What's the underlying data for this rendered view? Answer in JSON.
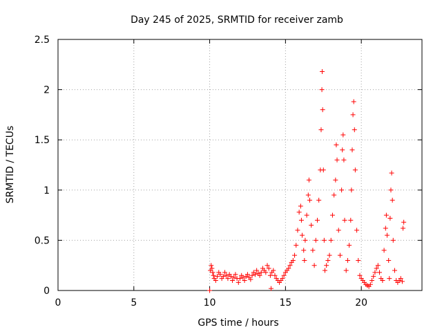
{
  "chart_data": {
    "type": "scatter",
    "title": "Day 245 of 2025, SRMTID for receiver zamb",
    "xlabel": "GPS time / hours",
    "ylabel": "SRMTID / TECUs",
    "xlim": [
      0,
      24
    ],
    "ylim": [
      0,
      2.5
    ],
    "xticks": [
      0,
      5,
      10,
      15,
      20
    ],
    "yticks": [
      0,
      0.5,
      1,
      1.5,
      2,
      2.5
    ],
    "xtick_labels": [
      "0",
      "5",
      "10",
      "15",
      "20"
    ],
    "ytick_labels": [
      "0",
      "0.5",
      "1",
      "1.5",
      "2",
      "2.5"
    ],
    "grid": true,
    "marker": "+",
    "color": "#ff0000",
    "series": [
      {
        "name": "SRMTID",
        "points": [
          [
            10.0,
            0.0
          ],
          [
            10.05,
            0.2
          ],
          [
            10.1,
            0.25
          ],
          [
            10.15,
            0.22
          ],
          [
            10.2,
            0.18
          ],
          [
            10.25,
            0.15
          ],
          [
            10.3,
            0.12
          ],
          [
            10.4,
            0.1
          ],
          [
            10.5,
            0.14
          ],
          [
            10.6,
            0.18
          ],
          [
            10.7,
            0.16
          ],
          [
            10.8,
            0.12
          ],
          [
            10.9,
            0.14
          ],
          [
            11.0,
            0.18
          ],
          [
            11.1,
            0.15
          ],
          [
            11.2,
            0.12
          ],
          [
            11.3,
            0.16
          ],
          [
            11.4,
            0.14
          ],
          [
            11.5,
            0.1
          ],
          [
            11.6,
            0.13
          ],
          [
            11.7,
            0.16
          ],
          [
            11.8,
            0.12
          ],
          [
            11.9,
            0.08
          ],
          [
            12.0,
            0.12
          ],
          [
            12.1,
            0.15
          ],
          [
            12.2,
            0.13
          ],
          [
            12.3,
            0.1
          ],
          [
            12.4,
            0.14
          ],
          [
            12.5,
            0.16
          ],
          [
            12.6,
            0.13
          ],
          [
            12.7,
            0.11
          ],
          [
            12.8,
            0.15
          ],
          [
            12.9,
            0.18
          ],
          [
            13.0,
            0.16
          ],
          [
            13.1,
            0.2
          ],
          [
            13.2,
            0.17
          ],
          [
            13.3,
            0.15
          ],
          [
            13.4,
            0.18
          ],
          [
            13.5,
            0.22
          ],
          [
            13.6,
            0.2
          ],
          [
            13.7,
            0.18
          ],
          [
            13.8,
            0.25
          ],
          [
            13.9,
            0.22
          ],
          [
            14.0,
            0.15
          ],
          [
            14.05,
            0.02
          ],
          [
            14.1,
            0.18
          ],
          [
            14.2,
            0.2
          ],
          [
            14.3,
            0.15
          ],
          [
            14.4,
            0.12
          ],
          [
            14.5,
            0.1
          ],
          [
            14.6,
            0.08
          ],
          [
            14.7,
            0.1
          ],
          [
            14.8,
            0.12
          ],
          [
            14.9,
            0.15
          ],
          [
            15.0,
            0.18
          ],
          [
            15.1,
            0.2
          ],
          [
            15.2,
            0.22
          ],
          [
            15.3,
            0.25
          ],
          [
            15.4,
            0.28
          ],
          [
            15.5,
            0.3
          ],
          [
            15.6,
            0.35
          ],
          [
            15.7,
            0.45
          ],
          [
            15.8,
            0.6
          ],
          [
            15.9,
            0.78
          ],
          [
            16.0,
            0.84
          ],
          [
            16.05,
            0.7
          ],
          [
            16.1,
            0.55
          ],
          [
            16.2,
            0.4
          ],
          [
            16.25,
            0.3
          ],
          [
            16.3,
            0.5
          ],
          [
            16.4,
            0.75
          ],
          [
            16.5,
            0.95
          ],
          [
            16.55,
            1.1
          ],
          [
            16.6,
            0.9
          ],
          [
            16.7,
            0.65
          ],
          [
            16.8,
            0.4
          ],
          [
            16.9,
            0.25
          ],
          [
            17.0,
            0.5
          ],
          [
            17.1,
            0.7
          ],
          [
            17.2,
            0.9
          ],
          [
            17.3,
            1.2
          ],
          [
            17.35,
            1.6
          ],
          [
            17.4,
            2.0
          ],
          [
            17.42,
            2.18
          ],
          [
            17.45,
            1.8
          ],
          [
            17.5,
            1.2
          ],
          [
            17.55,
            0.5
          ],
          [
            17.6,
            0.2
          ],
          [
            17.7,
            0.25
          ],
          [
            17.8,
            0.3
          ],
          [
            17.9,
            0.35
          ],
          [
            18.0,
            0.5
          ],
          [
            18.1,
            0.75
          ],
          [
            18.2,
            0.95
          ],
          [
            18.3,
            1.1
          ],
          [
            18.35,
            1.45
          ],
          [
            18.4,
            1.3
          ],
          [
            18.5,
            0.6
          ],
          [
            18.6,
            0.35
          ],
          [
            18.7,
            1.0
          ],
          [
            18.75,
            1.4
          ],
          [
            18.8,
            1.55
          ],
          [
            18.85,
            1.3
          ],
          [
            18.9,
            0.7
          ],
          [
            19.0,
            0.2
          ],
          [
            19.1,
            0.3
          ],
          [
            19.2,
            0.45
          ],
          [
            19.3,
            0.7
          ],
          [
            19.35,
            1.0
          ],
          [
            19.4,
            1.4
          ],
          [
            19.45,
            1.75
          ],
          [
            19.5,
            1.88
          ],
          [
            19.55,
            1.6
          ],
          [
            19.6,
            1.2
          ],
          [
            19.7,
            0.6
          ],
          [
            19.8,
            0.3
          ],
          [
            19.9,
            0.15
          ],
          [
            20.0,
            0.12
          ],
          [
            20.1,
            0.1
          ],
          [
            20.2,
            0.08
          ],
          [
            20.3,
            0.06
          ],
          [
            20.4,
            0.05
          ],
          [
            20.5,
            0.04
          ],
          [
            20.6,
            0.06
          ],
          [
            20.7,
            0.1
          ],
          [
            20.8,
            0.14
          ],
          [
            20.9,
            0.18
          ],
          [
            21.0,
            0.22
          ],
          [
            21.1,
            0.25
          ],
          [
            21.2,
            0.18
          ],
          [
            21.3,
            0.12
          ],
          [
            21.4,
            0.1
          ],
          [
            21.5,
            0.4
          ],
          [
            21.6,
            0.62
          ],
          [
            21.65,
            0.75
          ],
          [
            21.7,
            0.55
          ],
          [
            21.8,
            0.3
          ],
          [
            21.85,
            0.12
          ],
          [
            21.9,
            0.72
          ],
          [
            21.95,
            1.0
          ],
          [
            22.0,
            1.17
          ],
          [
            22.05,
            0.9
          ],
          [
            22.1,
            0.5
          ],
          [
            22.2,
            0.2
          ],
          [
            22.3,
            0.1
          ],
          [
            22.4,
            0.08
          ],
          [
            22.5,
            0.1
          ],
          [
            22.6,
            0.12
          ],
          [
            22.7,
            0.09
          ],
          [
            22.75,
            0.62
          ],
          [
            22.8,
            0.68
          ]
        ]
      }
    ]
  }
}
